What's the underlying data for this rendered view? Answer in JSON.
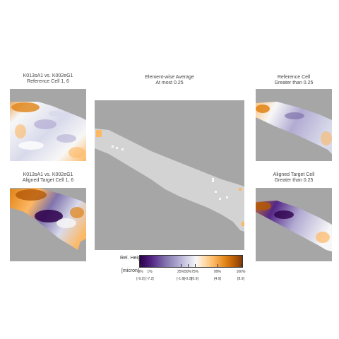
{
  "panels": {
    "top_left": {
      "title_line1": "K013sA1 vs. K002eG1",
      "title_line2": "Reference Cell 1, 6"
    },
    "bottom_left": {
      "title_line1": "K013sA1 vs. K002eG1",
      "title_line2": "Aligned Target Cell 1, 6"
    },
    "center": {
      "title_line1": "Element-wise Average",
      "title_line2": "At most 0.25"
    },
    "top_right": {
      "title_line1": "Reference Cell",
      "title_line2": "Greater than 0.25"
    },
    "bottom_right": {
      "title_line1": "Aligned Target Cell",
      "title_line2": "Greater than 0.25"
    }
  },
  "colors": {
    "background_gray": "#a6a6a6",
    "mask_gray": "#d3d3d3",
    "dark_purple": "#2d004b",
    "mid_purple": "#8073ac",
    "light_purple": "#d8daeb",
    "white": "#f7f7f7",
    "light_orange": "#fdb863",
    "orange": "#e08214",
    "dark_brown": "#7f3b08"
  },
  "legend": {
    "title": "Rel. Height",
    "unit": "[micron]",
    "ticks": [
      {
        "pct": "0%",
        "val": "[-9.2]"
      },
      {
        "pct": "1%",
        "val": "[-7.2]"
      },
      {
        "pct": "25%",
        "val": "[-1.6]"
      },
      {
        "pct": "50%",
        "val": "[-0.2]"
      },
      {
        "pct": "75%",
        "val": "[0.9]"
      },
      {
        "pct": "99%",
        "val": "[4.9]"
      },
      {
        "pct": "100%",
        "val": "[8.9]"
      }
    ]
  }
}
